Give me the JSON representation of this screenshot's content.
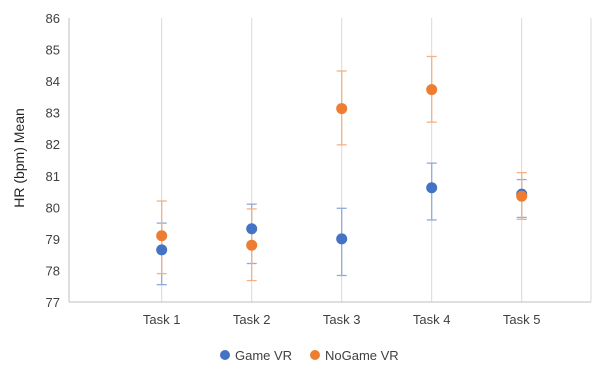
{
  "chart_data": {
    "type": "scatter",
    "title": "",
    "xlabel": "",
    "ylabel": "HR (bpm) Mean",
    "categories": [
      "Task 1",
      "Task 2",
      "Task 3",
      "Task 4",
      "Task 5"
    ],
    "ylim": [
      77,
      86
    ],
    "yticks": [
      77,
      78,
      79,
      80,
      81,
      82,
      83,
      84,
      85,
      86
    ],
    "grid": "vertical gridlines",
    "legend_position": "bottom",
    "series": [
      {
        "name": "Game VR",
        "color": "#4472C4",
        "values": [
          78.65,
          79.32,
          79.0,
          80.62,
          80.42
        ],
        "error_low": [
          77.55,
          78.22,
          77.84,
          79.6,
          79.68
        ],
        "error_high": [
          79.5,
          80.1,
          79.97,
          81.4,
          80.88
        ]
      },
      {
        "name": "NoGame VR",
        "color": "#ED7D31",
        "values": [
          79.1,
          78.8,
          83.13,
          83.73,
          80.35
        ],
        "error_low": [
          77.9,
          77.68,
          81.98,
          82.7,
          79.62
        ],
        "error_high": [
          80.2,
          79.95,
          84.32,
          84.78,
          81.1
        ]
      }
    ]
  }
}
